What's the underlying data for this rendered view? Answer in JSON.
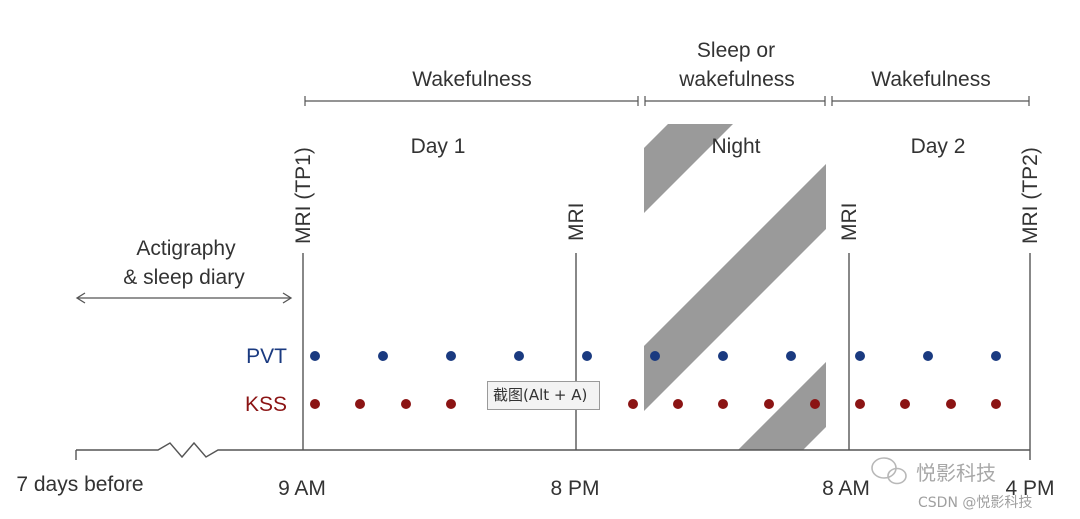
{
  "phases": {
    "wakefulness_1": "Wakefulness",
    "sleep_line1": "Sleep or",
    "sleep_line2": "wakefulness",
    "wakefulness_2": "Wakefulness"
  },
  "periods": {
    "day1": "Day 1",
    "night": "Night",
    "day2": "Day 2"
  },
  "markers": {
    "mri_tp1": "MRI (TP1)",
    "mri_8pm": "MRI",
    "mri_8am": "MRI",
    "mri_tp2": "MRI (TP2)"
  },
  "actigraphy": {
    "line1": "Actigraphy",
    "line2": "& sleep diary"
  },
  "rows": {
    "pvt": {
      "label": "PVT",
      "color": "#1a3a80"
    },
    "kss": {
      "label": "KSS",
      "color": "#8b1414"
    }
  },
  "time_labels": {
    "before": "7 days before",
    "t9am": "9 AM",
    "t8pm": "8 PM",
    "t8am": "8 AM",
    "t4pm": "4 PM"
  },
  "tooltip": "截图(Alt + A)",
  "watermark": {
    "line1": "悦影科技",
    "line2": "CSDN @悦影科技"
  },
  "colors": {
    "stripes": "#999999",
    "axis": "#555555",
    "text": "#333333"
  }
}
